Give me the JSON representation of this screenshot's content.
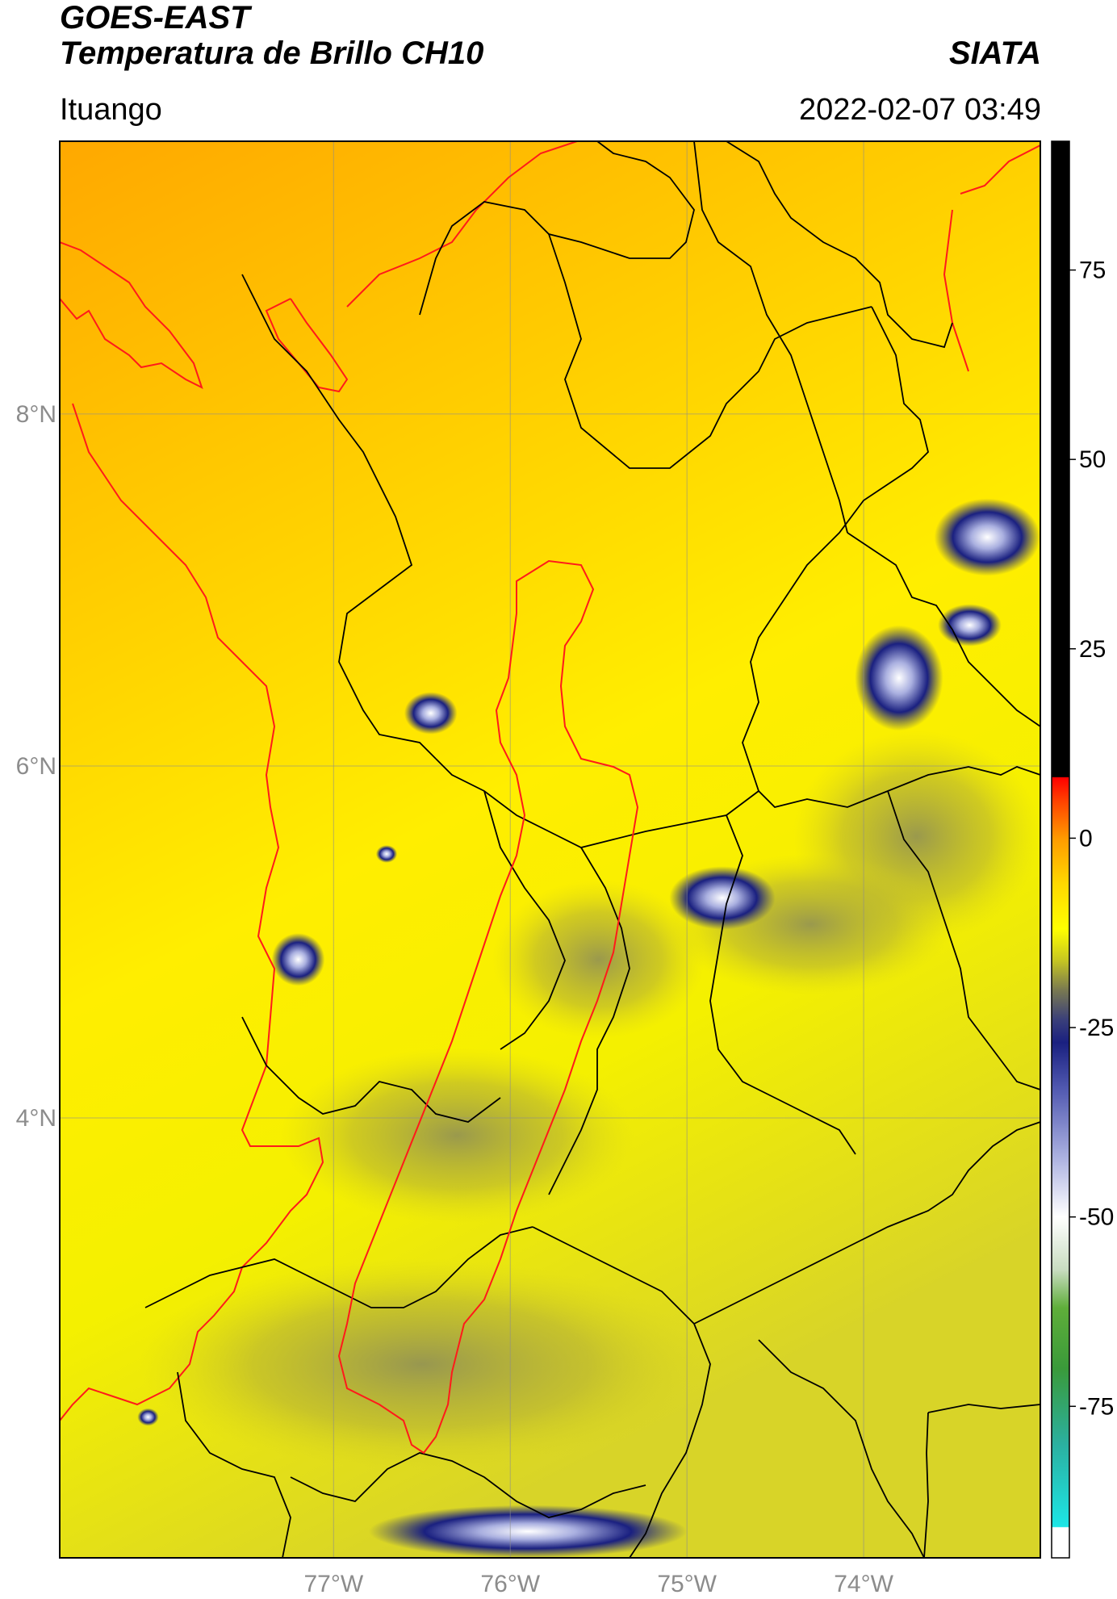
{
  "header": {
    "title_line1": "GOES-EAST",
    "title_line2": "Temperatura de Brillo CH10",
    "organization": "SIATA",
    "region": "Ituango",
    "datetime": "2022-02-07 03:49"
  },
  "map": {
    "lon_range": [
      -78.55,
      -73.0
    ],
    "lat_range": [
      1.5,
      9.55
    ],
    "gridlines": true,
    "grid_color": "#8c8c8c",
    "lon_ticks": [
      {
        "value": -77,
        "label": "77°W"
      },
      {
        "value": -76,
        "label": "76°W"
      },
      {
        "value": -75,
        "label": "75°W"
      },
      {
        "value": -74,
        "label": "74°W"
      }
    ],
    "lat_ticks": [
      {
        "value": 8,
        "label": "8°N"
      },
      {
        "value": 6,
        "label": "6°N"
      },
      {
        "value": 4,
        "label": "4°N"
      }
    ],
    "coastline_color": "#ff1a1a",
    "boundary_color": "#000000",
    "basin_color": "#ff1a1a",
    "cold_cells": [
      {
        "lon": -73.3,
        "lat": 7.3,
        "rx": 0.3,
        "ry": 0.22,
        "level": "cold"
      },
      {
        "lon": -73.4,
        "lat": 6.8,
        "rx": 0.18,
        "ry": 0.12,
        "level": "cold"
      },
      {
        "lon": -73.8,
        "lat": 6.5,
        "rx": 0.25,
        "ry": 0.3,
        "level": "cold"
      },
      {
        "lon": -74.8,
        "lat": 5.25,
        "rx": 0.3,
        "ry": 0.18,
        "level": "cold"
      },
      {
        "lon": -76.45,
        "lat": 6.3,
        "rx": 0.15,
        "ry": 0.12,
        "level": "cold"
      },
      {
        "lon": -77.2,
        "lat": 4.9,
        "rx": 0.15,
        "ry": 0.15,
        "level": "cold"
      },
      {
        "lon": -76.7,
        "lat": 5.5,
        "rx": 0.06,
        "ry": 0.05,
        "level": "cold"
      },
      {
        "lon": -75.9,
        "lat": 1.65,
        "rx": 0.9,
        "ry": 0.15,
        "level": "cold"
      },
      {
        "lon": -78.05,
        "lat": 2.3,
        "rx": 0.06,
        "ry": 0.05,
        "level": "cold"
      }
    ],
    "cloud_regions": [
      {
        "lon": -76.3,
        "lat": 3.9,
        "rx": 1.0,
        "ry": 0.5
      },
      {
        "lon": -75.5,
        "lat": 4.9,
        "rx": 0.6,
        "ry": 0.45
      },
      {
        "lon": -73.7,
        "lat": 5.6,
        "rx": 0.7,
        "ry": 0.6
      },
      {
        "lon": -76.5,
        "lat": 2.6,
        "rx": 1.6,
        "ry": 0.6
      },
      {
        "lon": -74.3,
        "lat": 5.1,
        "rx": 0.8,
        "ry": 0.4
      }
    ]
  },
  "colorbar": {
    "vmin": -95,
    "vmax": 92,
    "ticks": [
      75,
      50,
      25,
      0,
      -25,
      -50,
      -75
    ],
    "stops": [
      {
        "value": -95,
        "color": "#ffffff"
      },
      {
        "value": -91,
        "color": "#ffffff"
      },
      {
        "value": -90.9,
        "color": "#1de6e6"
      },
      {
        "value": -80,
        "color": "#2bb0a0"
      },
      {
        "value": -70,
        "color": "#3a9a3a"
      },
      {
        "value": -62,
        "color": "#5fae3a"
      },
      {
        "value": -57,
        "color": "#c8dcc0"
      },
      {
        "value": -50,
        "color": "#ffffff"
      },
      {
        "value": -42,
        "color": "#aab0e0"
      },
      {
        "value": -33,
        "color": "#5058b0"
      },
      {
        "value": -27,
        "color": "#1a2080"
      },
      {
        "value": -24,
        "color": "#3a3f7a"
      },
      {
        "value": -20,
        "color": "#7a7a50"
      },
      {
        "value": -16,
        "color": "#c8c820"
      },
      {
        "value": -12,
        "color": "#ffff00"
      },
      {
        "value": -6,
        "color": "#ffd800"
      },
      {
        "value": 0,
        "color": "#ff9a00"
      },
      {
        "value": 5,
        "color": "#ff4000"
      },
      {
        "value": 8,
        "color": "#ff0000"
      },
      {
        "value": 8.1,
        "color": "#000000"
      },
      {
        "value": 92,
        "color": "#000000"
      }
    ]
  }
}
